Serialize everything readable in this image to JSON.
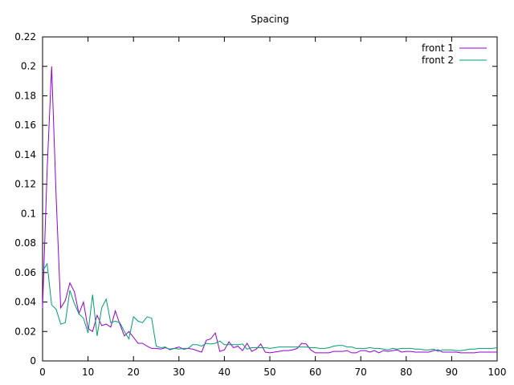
{
  "chart_data": {
    "type": "line",
    "title": "Spacing",
    "xlabel": "",
    "ylabel": "",
    "xlim": [
      0,
      100
    ],
    "ylim": [
      0,
      0.22
    ],
    "xticks": [
      0,
      10,
      20,
      30,
      40,
      50,
      60,
      70,
      80,
      90,
      100
    ],
    "yticks": [
      0,
      0.02,
      0.04,
      0.06,
      0.08,
      0.1,
      0.12,
      0.14,
      0.16,
      0.18,
      0.2,
      0.22
    ],
    "grid": false,
    "legend_position": "top-right",
    "series": [
      {
        "name": "front 1",
        "color": "#9400d3",
        "x": [
          0,
          1,
          2,
          3,
          4,
          5,
          6,
          7,
          8,
          9,
          10,
          11,
          12,
          13,
          14,
          15,
          16,
          17,
          18,
          19,
          20,
          21,
          22,
          23,
          24,
          25,
          26,
          27,
          28,
          29,
          30,
          31,
          32,
          33,
          34,
          35,
          36,
          37,
          38,
          39,
          40,
          41,
          42,
          43,
          44,
          45,
          46,
          47,
          48,
          49,
          50,
          51,
          52,
          53,
          54,
          55,
          56,
          57,
          58,
          59,
          60,
          61,
          62,
          63,
          64,
          65,
          66,
          67,
          68,
          69,
          70,
          71,
          72,
          73,
          74,
          75,
          76,
          77,
          78,
          79,
          80,
          81,
          82,
          83,
          84,
          85,
          86,
          87,
          88,
          89,
          90,
          91,
          92,
          93,
          94,
          95,
          96,
          97,
          98,
          99,
          100
        ],
        "y": [
          0.036,
          0.13,
          0.2,
          0.11,
          0.036,
          0.041,
          0.053,
          0.047,
          0.032,
          0.04,
          0.022,
          0.02,
          0.031,
          0.024,
          0.025,
          0.023,
          0.034,
          0.025,
          0.017,
          0.02,
          0.016,
          0.012,
          0.012,
          0.01,
          0.0085,
          0.0085,
          0.008,
          0.009,
          0.008,
          0.0085,
          0.0095,
          0.008,
          0.0085,
          0.008,
          0.007,
          0.006,
          0.014,
          0.015,
          0.019,
          0.0065,
          0.0075,
          0.013,
          0.009,
          0.01,
          0.007,
          0.012,
          0.0065,
          0.008,
          0.0115,
          0.006,
          0.0055,
          0.006,
          0.0065,
          0.007,
          0.007,
          0.0075,
          0.0085,
          0.012,
          0.0115,
          0.0075,
          0.0055,
          0.0055,
          0.0055,
          0.0055,
          0.0065,
          0.0065,
          0.0065,
          0.007,
          0.0055,
          0.0055,
          0.007,
          0.007,
          0.006,
          0.007,
          0.0055,
          0.007,
          0.0065,
          0.007,
          0.0075,
          0.006,
          0.0065,
          0.0065,
          0.006,
          0.006,
          0.006,
          0.006,
          0.007,
          0.0075,
          0.006,
          0.006,
          0.006,
          0.006,
          0.0055,
          0.0055,
          0.0055,
          0.0055,
          0.006,
          0.006,
          0.006,
          0.006,
          0.006
        ]
      },
      {
        "name": "front 2",
        "color": "#009e73",
        "x": [
          0,
          1,
          2,
          3,
          4,
          5,
          6,
          7,
          8,
          9,
          10,
          11,
          12,
          13,
          14,
          15,
          16,
          17,
          18,
          19,
          20,
          21,
          22,
          23,
          24,
          25,
          26,
          27,
          28,
          29,
          30,
          31,
          32,
          33,
          34,
          35,
          36,
          37,
          38,
          39,
          40,
          41,
          42,
          43,
          44,
          45,
          46,
          47,
          48,
          49,
          50,
          51,
          52,
          53,
          54,
          55,
          56,
          57,
          58,
          59,
          60,
          61,
          62,
          63,
          64,
          65,
          66,
          67,
          68,
          69,
          70,
          71,
          72,
          73,
          74,
          75,
          76,
          77,
          78,
          79,
          80,
          81,
          82,
          83,
          84,
          85,
          86,
          87,
          88,
          89,
          90,
          91,
          92,
          93,
          94,
          95,
          96,
          97,
          98,
          99,
          100
        ],
        "y": [
          0.061,
          0.066,
          0.038,
          0.035,
          0.025,
          0.026,
          0.048,
          0.039,
          0.032,
          0.029,
          0.019,
          0.045,
          0.017,
          0.036,
          0.042,
          0.026,
          0.027,
          0.026,
          0.02,
          0.015,
          0.03,
          0.027,
          0.026,
          0.03,
          0.029,
          0.01,
          0.009,
          0.0095,
          0.0075,
          0.0085,
          0.008,
          0.0085,
          0.0085,
          0.011,
          0.011,
          0.01,
          0.012,
          0.0115,
          0.012,
          0.0135,
          0.011,
          0.011,
          0.011,
          0.011,
          0.0115,
          0.008,
          0.009,
          0.009,
          0.009,
          0.009,
          0.0085,
          0.009,
          0.0095,
          0.0095,
          0.0095,
          0.0095,
          0.0095,
          0.0095,
          0.0095,
          0.009,
          0.009,
          0.0085,
          0.0085,
          0.009,
          0.01,
          0.0105,
          0.0105,
          0.0095,
          0.0095,
          0.0085,
          0.0085,
          0.0085,
          0.009,
          0.0085,
          0.0085,
          0.008,
          0.0075,
          0.0085,
          0.008,
          0.0085,
          0.0085,
          0.0085,
          0.008,
          0.008,
          0.0075,
          0.0075,
          0.008,
          0.0065,
          0.0075,
          0.0075,
          0.0075,
          0.007,
          0.007,
          0.0075,
          0.008,
          0.008,
          0.0085,
          0.0085,
          0.0085,
          0.0085,
          0.009
        ]
      }
    ]
  }
}
